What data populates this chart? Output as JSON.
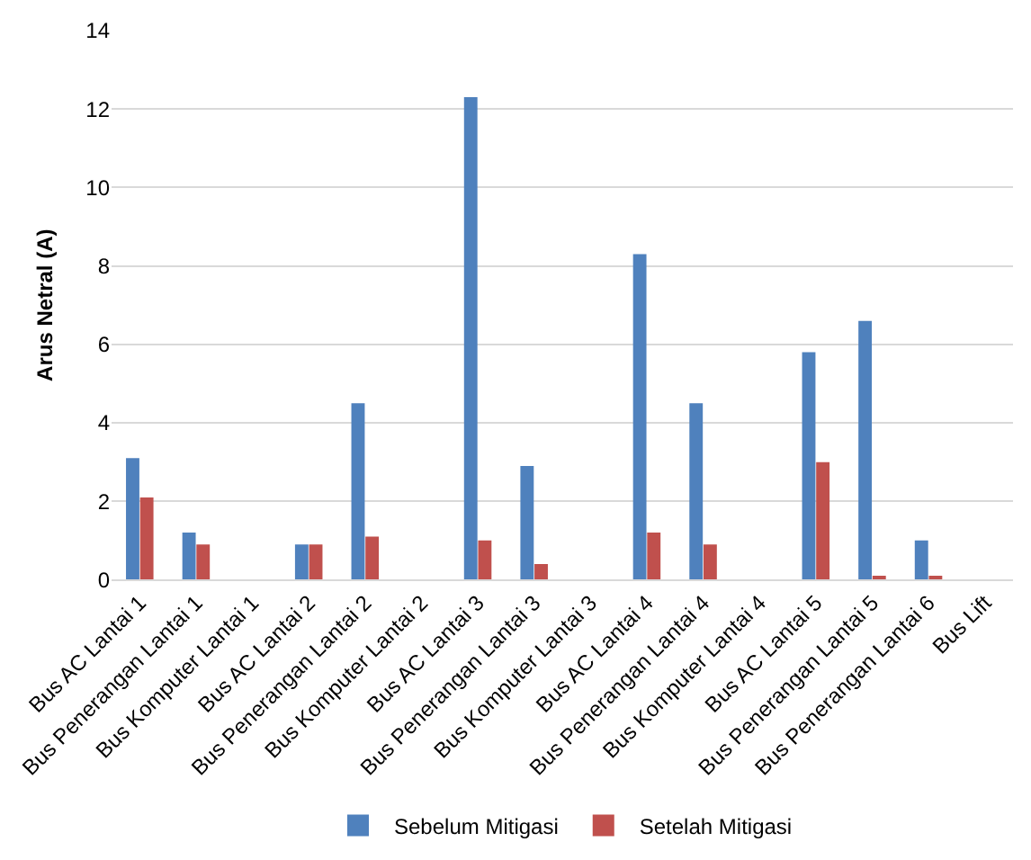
{
  "chart_data": {
    "type": "bar",
    "ylabel": "Arus Netral (A)",
    "categories": [
      "Bus AC Lantai 1",
      "Bus Penerangan Lantai 1",
      "Bus Komputer Lantai 1",
      "Bus AC Lantai 2",
      "Bus Penerangan Lantai 2",
      "Bus Komputer Lantai 2",
      "Bus AC Lantai 3",
      "Bus Penerangan Lantai 3",
      "Bus Komputer Lantai 3",
      "Bus AC Lantai 4",
      "Bus Penerangan Lantai 4",
      "Bus Komputer Lantai 4",
      "Bus AC Lantai 5",
      "Bus Penerangan Lantai 5",
      "Bus Penerangan Lantai 6",
      "Bus Lift"
    ],
    "series": [
      {
        "name": "Sebelum Mitigasi",
        "color": "#4f81bd",
        "values": [
          3.1,
          1.2,
          null,
          0.9,
          4.5,
          null,
          12.3,
          2.9,
          null,
          8.3,
          4.5,
          null,
          5.8,
          6.6,
          1.0,
          null
        ]
      },
      {
        "name": "Setelah Mitigasi",
        "color": "#c0504d",
        "values": [
          2.1,
          0.9,
          null,
          0.9,
          1.1,
          null,
          1.0,
          0.4,
          null,
          1.2,
          0.9,
          null,
          3.0,
          0.1,
          0.1,
          null
        ]
      }
    ],
    "ylim": [
      0,
      14
    ],
    "yticks": [
      0,
      2,
      4,
      6,
      8,
      10,
      12,
      14
    ],
    "grid": "y",
    "legend": "bottom"
  }
}
